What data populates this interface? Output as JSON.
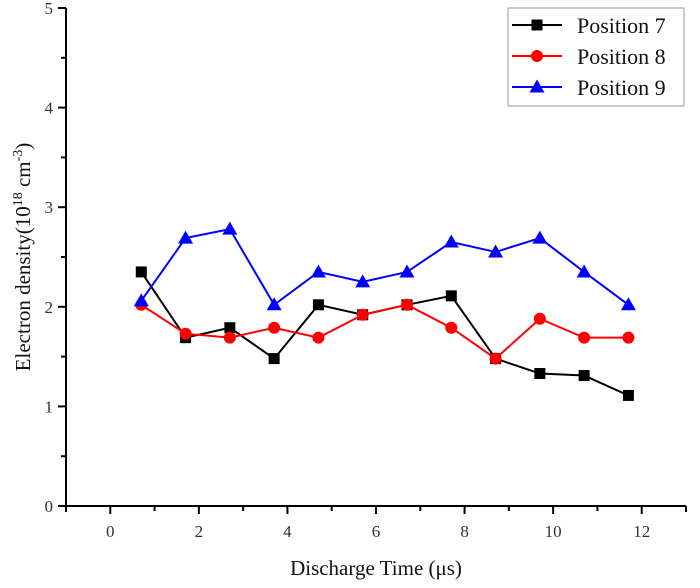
{
  "chart_data": {
    "type": "line",
    "title": "",
    "xlabel": "Discharge Time (μs)",
    "ylabel_main": "Electron density(10",
    "ylabel_sup1": "18",
    "ylabel_mid": " cm",
    "ylabel_sup2": "-3",
    "ylabel_end": ")",
    "xlim": [
      -1,
      13
    ],
    "ylim": [
      0,
      5
    ],
    "xticks": [
      0,
      2,
      4,
      6,
      8,
      10,
      12
    ],
    "xticks_minor": [
      1,
      3,
      5,
      7,
      9,
      11
    ],
    "yticks": [
      0,
      1,
      2,
      3,
      4,
      5
    ],
    "yticks_minor": [
      0.5,
      1.5,
      2.5,
      3.5,
      4.5
    ],
    "grid": false,
    "legend_position": "top-right",
    "x": [
      0.7,
      1.7,
      2.7,
      3.7,
      4.7,
      5.7,
      6.7,
      7.7,
      8.7,
      9.7,
      10.7,
      11.7
    ],
    "series": [
      {
        "name": "Position 7",
        "color": "#000000",
        "marker": "square",
        "values": [
          2.35,
          1.69,
          1.79,
          1.48,
          2.02,
          1.92,
          2.02,
          2.11,
          1.48,
          1.33,
          1.31,
          1.11
        ]
      },
      {
        "name": "Position 8",
        "color": "#ff0000",
        "marker": "circle",
        "values": [
          2.02,
          1.73,
          1.69,
          1.79,
          1.69,
          1.92,
          2.02,
          1.79,
          1.48,
          1.88,
          1.69,
          1.69
        ]
      },
      {
        "name": "Position 9",
        "color": "#0000ff",
        "marker": "triangle",
        "values": [
          2.06,
          2.69,
          2.78,
          2.02,
          2.35,
          2.25,
          2.35,
          2.65,
          2.55,
          2.69,
          2.35,
          2.02
        ]
      }
    ]
  }
}
